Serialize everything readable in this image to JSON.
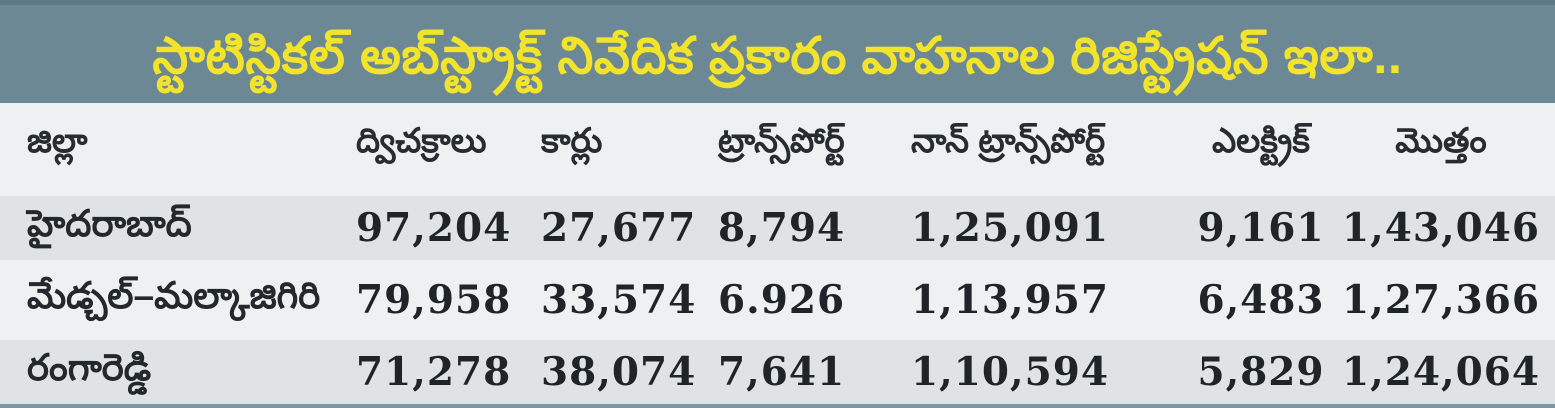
{
  "title": "స్టాటిస్టికల్ అబ్‌స్ట్రాక్ట్ నివేదిక ప్రకారం వాహనాల రిజిస్ట్రేషన్ ఇలా..",
  "theme": {
    "title_band_bg": "#6c8894",
    "title_band_top_strip": "#5d7985",
    "title_text_color": "#f2e32b",
    "table_base_bg": "#eef1f2",
    "row_stripe_bg": "#dfe3e5",
    "bottom_bar_color": "#7d98a3",
    "text_color": "#23282c"
  },
  "table": {
    "headers": [
      "జిల్లా",
      "ద్విచక్రాలు",
      "కార్లు",
      "ట్రాన్స్‌పోర్ట్",
      "నాన్ ట్రాన్స్‌పోర్ట్",
      "ఎలక్ట్రిక్",
      "మొత్తం"
    ],
    "rows": [
      {
        "district": "హైదరాబాద్",
        "values": [
          "97,204",
          "27,677",
          "8,794",
          "1,25,091",
          "9,161",
          "1,43,046"
        ]
      },
      {
        "district": "మేడ్చల్–మల్కాజిగిరి",
        "values": [
          "79,958",
          "33,574",
          "6.926",
          "1,13,957",
          "6,483",
          "1,27,366"
        ]
      },
      {
        "district": "రంగారెడ్డి",
        "values": [
          "71,278",
          "38,074",
          "7,641",
          "1,10,594",
          "5,829",
          "1,24,064"
        ]
      }
    ]
  },
  "chart_data": {
    "type": "table",
    "title": "స్టాటిస్టికల్ అబ్‌స్ట్రాక్ట్ నివేదిక ప్రకారం వాహనాల రిజిస్ట్రేషన్ ఇలా..",
    "columns": [
      "జిల్లా",
      "ద్విచక్రాలు",
      "కార్లు",
      "ట్రాన్స్‌పోర్ట్",
      "నాన్ ట్రాన్స్‌పోర్ట్",
      "ఎలక్ట్రిక్",
      "మొత్తం"
    ],
    "rows": [
      [
        "హైదరాబాద్",
        "97,204",
        "27,677",
        "8,794",
        "1,25,091",
        "9,161",
        "1,43,046"
      ],
      [
        "మేడ్చల్–మల్కాజిగిరి",
        "79,958",
        "33,574",
        "6.926",
        "1,13,957",
        "6,483",
        "1,27,366"
      ],
      [
        "రంగారెడ్డి",
        "71,278",
        "38,074",
        "7,641",
        "1,10,594",
        "5,829",
        "1,24,064"
      ]
    ]
  }
}
